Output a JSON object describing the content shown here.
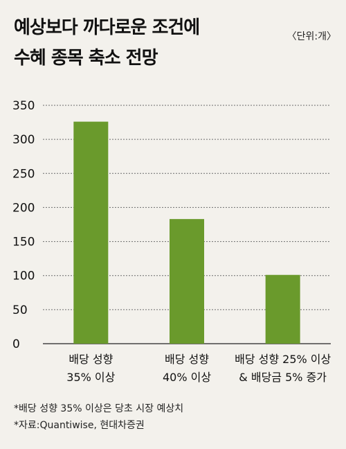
{
  "title_lines": [
    "예상보다 까다로운 조건에",
    "수혜 종목 축소 전망"
  ],
  "unit": "〈단위:개〉",
  "footnotes": [
    "*배당 성향 35% 이상은 당초 시장 예상치",
    "*자료:Quantiwise, 현대차증권"
  ],
  "colors": {
    "bar": "#6a9a2c",
    "grid": "#6b6b6b",
    "background": "#f3f1ec"
  },
  "chart_data": {
    "type": "bar",
    "categories": [
      [
        "배당 성향",
        "35% 이상"
      ],
      [
        "배당 성향",
        "40% 이상"
      ],
      [
        "배당 성향 25% 이상",
        "& 배당금 5% 증가"
      ]
    ],
    "values": [
      326,
      183,
      101
    ],
    "yticks": [
      "0",
      "50",
      "100",
      "150",
      "200",
      "250",
      "300",
      "350"
    ],
    "ylim": [
      0,
      350
    ],
    "grid": "horizontal dashed"
  }
}
